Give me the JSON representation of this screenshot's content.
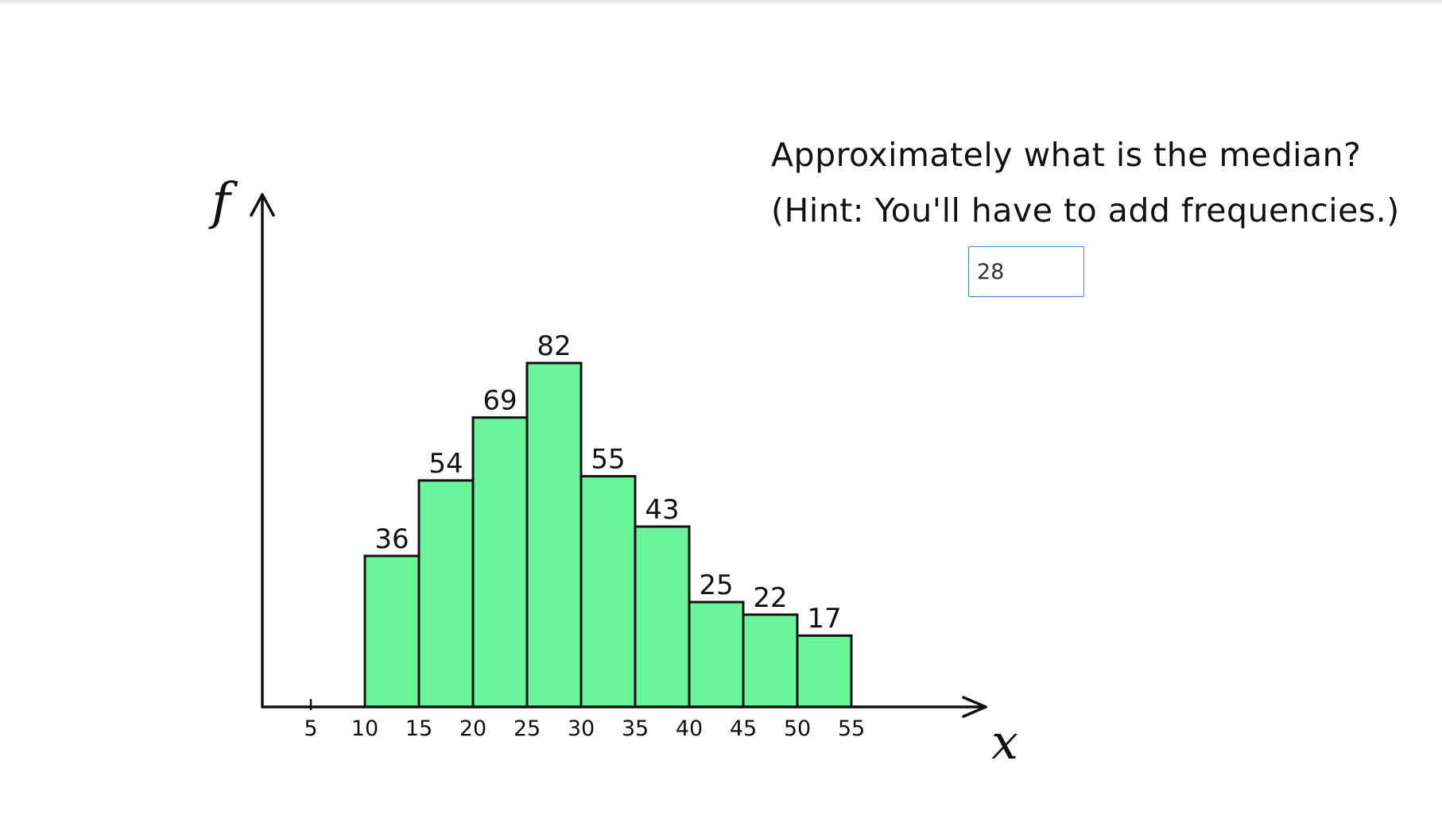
{
  "question": {
    "line1": "Approximately what is the median?",
    "line2": "(Hint: You'll have to add frequencies.)"
  },
  "answer": {
    "value": "28"
  },
  "chart_data": {
    "type": "bar",
    "title": "",
    "xlabel": "x",
    "ylabel": "f",
    "x_ticks": [
      5,
      10,
      15,
      20,
      25,
      30,
      35,
      40,
      45,
      50,
      55
    ],
    "bins": [
      [
        10,
        15
      ],
      [
        15,
        20
      ],
      [
        20,
        25
      ],
      [
        25,
        30
      ],
      [
        30,
        35
      ],
      [
        35,
        40
      ],
      [
        40,
        45
      ],
      [
        45,
        50
      ],
      [
        50,
        55
      ]
    ],
    "values": [
      36,
      54,
      69,
      82,
      55,
      43,
      25,
      22,
      17
    ],
    "ylim": [
      0,
      100
    ],
    "grid": false,
    "bar_color": "#6af59d",
    "edge_color": "#111111"
  }
}
